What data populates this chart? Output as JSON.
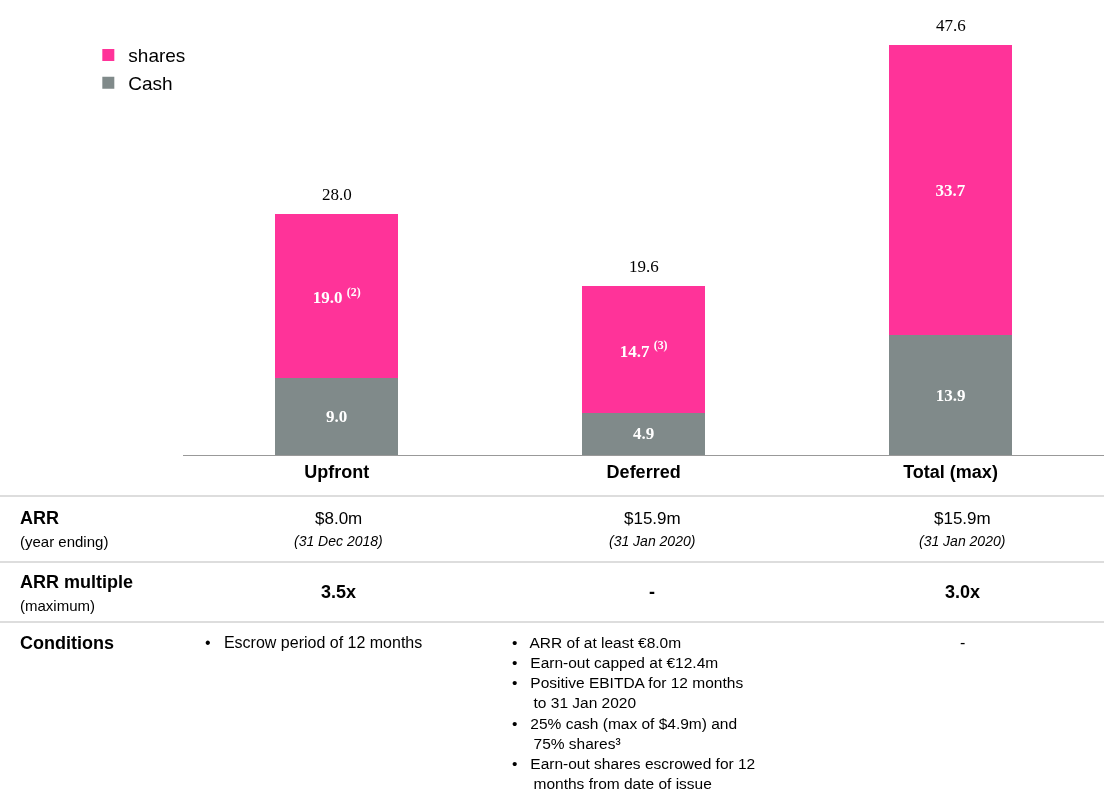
{
  "chart_data": {
    "type": "bar",
    "stacked": true,
    "legend": "top left",
    "tick_labels": "x",
    "categories": [
      "Upfront",
      "Deferred",
      "Total (max)"
    ],
    "series": [
      {
        "name": "Cash",
        "color": "#808a8a",
        "values": [
          9.0,
          4.9,
          13.9
        ],
        "value_labels": [
          "9.0",
          "4.9",
          "13.9"
        ]
      },
      {
        "name": "shares",
        "color": "#ff3399",
        "values": [
          19.0,
          14.7,
          33.7
        ],
        "value_labels": [
          "19.0 $^{(2)}$",
          "14.7 $^{(3)}$",
          "33.7"
        ]
      }
    ],
    "totals": [
      "28.0",
      "19.6",
      "47.6"
    ],
    "annotations": [
      "ARR",
      "(year ending)",
      "$8.0m",
      "(31 Dec 2018)",
      "$15.9m",
      "(31 Jan 2020)",
      "$15.9m",
      "(31 Jan 2020)",
      "ARR multiple",
      "(maximum)",
      "3.5x",
      "-",
      "3.0x",
      "Conditions",
      "•   Escrow period of 12 months",
      "•   ARR of at least €8.0m\n•   Earn-out capped at €12.4m\n•   Positive EBITDA for 12 months\n     to 31 Jan 2020\n•   25% cash (max of $4.9m) and\n     75% shares³\n•   Earn-out shares escrowed for 12\n     months from date of issue",
      "-"
    ]
  }
}
